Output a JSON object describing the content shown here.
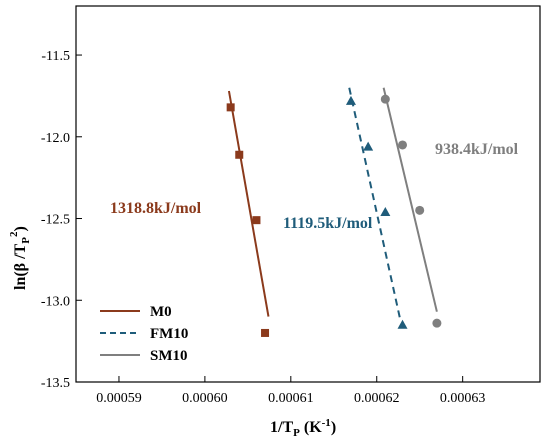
{
  "chart_data": {
    "type": "scatter",
    "xlabel_main": "1/T",
    "xlabel_sub": "P",
    "xlabel_unit": "(K",
    "xlabel_unit_sup": "-1",
    "xlabel_close": ")",
    "ylabel_main": "ln(β /T",
    "ylabel_sub": "P",
    "ylabel_sup": "2",
    "ylabel_close": ")",
    "xlim": [
      0.000585,
      0.000639
    ],
    "ylim": [
      -13.5,
      -11.2
    ],
    "x_ticks": [
      0.00059,
      0.0006,
      0.00061,
      0.00062,
      0.00063
    ],
    "x_tick_labels": [
      "0.00059",
      "0.00060",
      "0.00061",
      "0.00062",
      "0.00063"
    ],
    "y_ticks": [
      -11.5,
      -12.0,
      -12.5,
      -13.0,
      -13.5
    ],
    "y_tick_labels": [
      "-11.5",
      "-12.0",
      "-12.5",
      "-13.0",
      "-13.5"
    ],
    "grid": false,
    "legend_position": "bottom-left",
    "series": [
      {
        "name": "M0",
        "color": "#8b3a1c",
        "marker": "square",
        "line_style": "solid",
        "x": [
          0.000603,
          0.000604,
          0.000606,
          0.000607
        ],
        "y": [
          -11.82,
          -12.11,
          -12.51,
          -13.2
        ],
        "fit": [
          [
            0.0006028,
            -11.72
          ],
          [
            0.0006074,
            -13.1
          ]
        ],
        "annotation": "1318.8kJ/mol",
        "annotation_color": "#8b3a1c"
      },
      {
        "name": "FM10",
        "color": "#1f5c7a",
        "marker": "triangle",
        "line_style": "dashed",
        "x": [
          0.000617,
          0.000619,
          0.000621,
          0.000623
        ],
        "y": [
          -11.78,
          -12.06,
          -12.46,
          -13.15
        ],
        "fit": [
          [
            0.0006168,
            -11.7
          ],
          [
            0.0006227,
            -13.11
          ]
        ],
        "annotation": "1119.5kJ/mol",
        "annotation_color": "#1f5c7a"
      },
      {
        "name": "SM10",
        "color": "#7f7f7f",
        "marker": "circle",
        "line_style": "solid",
        "x": [
          0.000621,
          0.000623,
          0.000625,
          0.000627
        ],
        "y": [
          -11.77,
          -12.05,
          -12.45,
          -13.14
        ],
        "fit": [
          [
            0.0006208,
            -11.7
          ],
          [
            0.000627,
            -13.07
          ]
        ],
        "annotation": "938.4kJ/mol",
        "annotation_color": "#7f7f7f"
      }
    ]
  }
}
